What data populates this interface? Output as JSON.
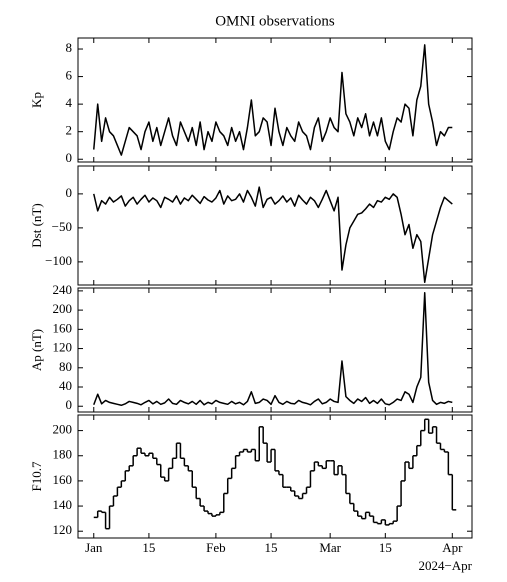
{
  "chart_data": [
    {
      "type": "line",
      "title": "OMNI observations",
      "ylabel": "Kp",
      "color": "#000000",
      "x": [
        "2024-01-01",
        "2024-01-02",
        "2024-01-03",
        "2024-01-04",
        "2024-01-05",
        "2024-01-06",
        "2024-01-07",
        "2024-01-08",
        "2024-01-09",
        "2024-01-10",
        "2024-01-11",
        "2024-01-12",
        "2024-01-13",
        "2024-01-14",
        "2024-01-15",
        "2024-01-16",
        "2024-01-17",
        "2024-01-18",
        "2024-01-19",
        "2024-01-20",
        "2024-01-21",
        "2024-01-22",
        "2024-01-23",
        "2024-01-24",
        "2024-01-25",
        "2024-01-26",
        "2024-01-27",
        "2024-01-28",
        "2024-01-29",
        "2024-01-30",
        "2024-01-31",
        "2024-02-01",
        "2024-02-02",
        "2024-02-03",
        "2024-02-04",
        "2024-02-05",
        "2024-02-06",
        "2024-02-07",
        "2024-02-08",
        "2024-02-09",
        "2024-02-10",
        "2024-02-11",
        "2024-02-12",
        "2024-02-13",
        "2024-02-14",
        "2024-02-15",
        "2024-02-16",
        "2024-02-17",
        "2024-02-18",
        "2024-02-19",
        "2024-02-20",
        "2024-02-21",
        "2024-02-22",
        "2024-02-23",
        "2024-02-24",
        "2024-02-25",
        "2024-02-26",
        "2024-02-27",
        "2024-02-28",
        "2024-02-29",
        "2024-03-01",
        "2024-03-02",
        "2024-03-03",
        "2024-03-04",
        "2024-03-05",
        "2024-03-06",
        "2024-03-07",
        "2024-03-08",
        "2024-03-09",
        "2024-03-10",
        "2024-03-11",
        "2024-03-12",
        "2024-03-13",
        "2024-03-14",
        "2024-03-15",
        "2024-03-16",
        "2024-03-17",
        "2024-03-18",
        "2024-03-19",
        "2024-03-20",
        "2024-03-21",
        "2024-03-22",
        "2024-03-23",
        "2024-03-24",
        "2024-03-25",
        "2024-03-26",
        "2024-03-27",
        "2024-03-28",
        "2024-03-29",
        "2024-03-30",
        "2024-03-31",
        "2024-04-01"
      ],
      "values": [
        0.7,
        4,
        1.3,
        3,
        2,
        1.7,
        1,
        0.3,
        1.3,
        2.3,
        2,
        1.7,
        0.7,
        2,
        2.7,
        1.3,
        2.3,
        1,
        2,
        3,
        1.7,
        1,
        2.7,
        2,
        1.3,
        2.3,
        1,
        2.7,
        0.7,
        2,
        1.3,
        2.7,
        2,
        1.7,
        1,
        2.3,
        1.3,
        2,
        0.7,
        2.3,
        4.3,
        1.7,
        2,
        3,
        2.7,
        1,
        3.7,
        2,
        1,
        2.3,
        1.7,
        1.3,
        2.7,
        2,
        1.7,
        0.7,
        2.3,
        3,
        1.3,
        2,
        3,
        2.3,
        2,
        6.3,
        3.3,
        2.7,
        1.7,
        3,
        2.3,
        3.3,
        1.7,
        2.7,
        1.7,
        3,
        1.3,
        0.7,
        2,
        3,
        2.7,
        4,
        3.7,
        1.7,
        4.3,
        5.3,
        8.3,
        4,
        2.7,
        1,
        2,
        1.7,
        2.3,
        2.3
      ],
      "xlim": [
        "2023-12-28",
        "2024-04-06"
      ],
      "ylim": [
        -0.2,
        8.8
      ],
      "yticks": [
        0,
        2,
        4,
        6,
        8
      ]
    },
    {
      "type": "line",
      "ylabel": "Dst (nT)",
      "color": "#000000",
      "x": [
        "2024-01-01",
        "2024-01-02",
        "2024-01-03",
        "2024-01-04",
        "2024-01-05",
        "2024-01-06",
        "2024-01-07",
        "2024-01-08",
        "2024-01-09",
        "2024-01-10",
        "2024-01-11",
        "2024-01-12",
        "2024-01-13",
        "2024-01-14",
        "2024-01-15",
        "2024-01-16",
        "2024-01-17",
        "2024-01-18",
        "2024-01-19",
        "2024-01-20",
        "2024-01-21",
        "2024-01-22",
        "2024-01-23",
        "2024-01-24",
        "2024-01-25",
        "2024-01-26",
        "2024-01-27",
        "2024-01-28",
        "2024-01-29",
        "2024-01-30",
        "2024-01-31",
        "2024-02-01",
        "2024-02-02",
        "2024-02-03",
        "2024-02-04",
        "2024-02-05",
        "2024-02-06",
        "2024-02-07",
        "2024-02-08",
        "2024-02-09",
        "2024-02-10",
        "2024-02-11",
        "2024-02-12",
        "2024-02-13",
        "2024-02-14",
        "2024-02-15",
        "2024-02-16",
        "2024-02-17",
        "2024-02-18",
        "2024-02-19",
        "2024-02-20",
        "2024-02-21",
        "2024-02-22",
        "2024-02-23",
        "2024-02-24",
        "2024-02-25",
        "2024-02-26",
        "2024-02-27",
        "2024-02-28",
        "2024-02-29",
        "2024-03-01",
        "2024-03-02",
        "2024-03-03",
        "2024-03-04",
        "2024-03-05",
        "2024-03-06",
        "2024-03-07",
        "2024-03-08",
        "2024-03-09",
        "2024-03-10",
        "2024-03-11",
        "2024-03-12",
        "2024-03-13",
        "2024-03-14",
        "2024-03-15",
        "2024-03-16",
        "2024-03-17",
        "2024-03-18",
        "2024-03-19",
        "2024-03-20",
        "2024-03-21",
        "2024-03-22",
        "2024-03-23",
        "2024-03-24",
        "2024-03-25",
        "2024-03-26",
        "2024-03-27",
        "2024-03-28",
        "2024-03-29",
        "2024-03-30",
        "2024-03-31",
        "2024-04-01"
      ],
      "values": [
        0,
        -25,
        -10,
        -15,
        -5,
        -12,
        -8,
        -3,
        -18,
        -10,
        -5,
        -15,
        -8,
        -2,
        -12,
        -6,
        -10,
        -20,
        -5,
        -8,
        -12,
        -3,
        -15,
        -6,
        -10,
        -2,
        -8,
        -14,
        -4,
        -9,
        -12,
        -6,
        5,
        -15,
        -3,
        -10,
        -8,
        0,
        -12,
        5,
        -5,
        -18,
        10,
        -20,
        -8,
        -5,
        -15,
        -10,
        -3,
        -12,
        -6,
        -18,
        -2,
        -9,
        -15,
        -5,
        -10,
        -20,
        -8,
        5,
        -10,
        -25,
        -5,
        -112,
        -75,
        -50,
        -40,
        -30,
        -28,
        -22,
        -15,
        -20,
        -10,
        -12,
        -5,
        -8,
        0,
        -5,
        -30,
        -60,
        -45,
        -80,
        -60,
        -70,
        -130,
        -95,
        -60,
        -40,
        -20,
        -5,
        -10,
        -15
      ],
      "xlim": [
        "2023-12-28",
        "2024-04-06"
      ],
      "ylim": [
        -134,
        41
      ],
      "yticks": [
        {
          "value": -100,
          "label": "−100"
        },
        {
          "value": -50,
          "label": "−50"
        },
        0
      ]
    },
    {
      "type": "line",
      "ylabel": "Ap (nT)",
      "color": "#000000",
      "x": [
        "2024-01-01",
        "2024-01-02",
        "2024-01-03",
        "2024-01-04",
        "2024-01-05",
        "2024-01-06",
        "2024-01-07",
        "2024-01-08",
        "2024-01-09",
        "2024-01-10",
        "2024-01-11",
        "2024-01-12",
        "2024-01-13",
        "2024-01-14",
        "2024-01-15",
        "2024-01-16",
        "2024-01-17",
        "2024-01-18",
        "2024-01-19",
        "2024-01-20",
        "2024-01-21",
        "2024-01-22",
        "2024-01-23",
        "2024-01-24",
        "2024-01-25",
        "2024-01-26",
        "2024-01-27",
        "2024-01-28",
        "2024-01-29",
        "2024-01-30",
        "2024-01-31",
        "2024-02-01",
        "2024-02-02",
        "2024-02-03",
        "2024-02-04",
        "2024-02-05",
        "2024-02-06",
        "2024-02-07",
        "2024-02-08",
        "2024-02-09",
        "2024-02-10",
        "2024-02-11",
        "2024-02-12",
        "2024-02-13",
        "2024-02-14",
        "2024-02-15",
        "2024-02-16",
        "2024-02-17",
        "2024-02-18",
        "2024-02-19",
        "2024-02-20",
        "2024-02-21",
        "2024-02-22",
        "2024-02-23",
        "2024-02-24",
        "2024-02-25",
        "2024-02-26",
        "2024-02-27",
        "2024-02-28",
        "2024-02-29",
        "2024-03-01",
        "2024-03-02",
        "2024-03-03",
        "2024-03-04",
        "2024-03-05",
        "2024-03-06",
        "2024-03-07",
        "2024-03-08",
        "2024-03-09",
        "2024-03-10",
        "2024-03-11",
        "2024-03-12",
        "2024-03-13",
        "2024-03-14",
        "2024-03-15",
        "2024-03-16",
        "2024-03-17",
        "2024-03-18",
        "2024-03-19",
        "2024-03-20",
        "2024-03-21",
        "2024-03-22",
        "2024-03-23",
        "2024-03-24",
        "2024-03-25",
        "2024-03-26",
        "2024-03-27",
        "2024-03-28",
        "2024-03-29",
        "2024-03-30",
        "2024-03-31",
        "2024-04-01"
      ],
      "values": [
        3,
        25,
        5,
        12,
        8,
        6,
        4,
        2,
        5,
        10,
        8,
        6,
        3,
        8,
        12,
        5,
        10,
        4,
        7,
        15,
        6,
        4,
        12,
        8,
        5,
        10,
        4,
        12,
        3,
        8,
        5,
        12,
        8,
        6,
        4,
        10,
        5,
        8,
        3,
        10,
        30,
        6,
        8,
        15,
        12,
        4,
        22,
        8,
        4,
        10,
        6,
        5,
        12,
        8,
        6,
        3,
        10,
        15,
        5,
        8,
        15,
        10,
        8,
        94,
        20,
        12,
        6,
        15,
        10,
        18,
        6,
        12,
        6,
        15,
        5,
        3,
        8,
        15,
        12,
        30,
        25,
        8,
        40,
        60,
        236,
        50,
        12,
        4,
        8,
        6,
        10,
        8
      ],
      "xlim": [
        "2023-12-28",
        "2024-04-06"
      ],
      "ylim": [
        -12,
        246
      ],
      "yticks": [
        0,
        40,
        80,
        120,
        160,
        200,
        240
      ]
    },
    {
      "type": "step",
      "ylabel": "F10.7",
      "color": "#000000",
      "x": [
        "2024-01-01",
        "2024-01-02",
        "2024-01-03",
        "2024-01-04",
        "2024-01-05",
        "2024-01-06",
        "2024-01-07",
        "2024-01-08",
        "2024-01-09",
        "2024-01-10",
        "2024-01-11",
        "2024-01-12",
        "2024-01-13",
        "2024-01-14",
        "2024-01-15",
        "2024-01-16",
        "2024-01-17",
        "2024-01-18",
        "2024-01-19",
        "2024-01-20",
        "2024-01-21",
        "2024-01-22",
        "2024-01-23",
        "2024-01-24",
        "2024-01-25",
        "2024-01-26",
        "2024-01-27",
        "2024-01-28",
        "2024-01-29",
        "2024-01-30",
        "2024-01-31",
        "2024-02-01",
        "2024-02-02",
        "2024-02-03",
        "2024-02-04",
        "2024-02-05",
        "2024-02-06",
        "2024-02-07",
        "2024-02-08",
        "2024-02-09",
        "2024-02-10",
        "2024-02-11",
        "2024-02-12",
        "2024-02-13",
        "2024-02-14",
        "2024-02-15",
        "2024-02-16",
        "2024-02-17",
        "2024-02-18",
        "2024-02-19",
        "2024-02-20",
        "2024-02-21",
        "2024-02-22",
        "2024-02-23",
        "2024-02-24",
        "2024-02-25",
        "2024-02-26",
        "2024-02-27",
        "2024-02-28",
        "2024-02-29",
        "2024-03-01",
        "2024-03-02",
        "2024-03-03",
        "2024-03-04",
        "2024-03-05",
        "2024-03-06",
        "2024-03-07",
        "2024-03-08",
        "2024-03-09",
        "2024-03-10",
        "2024-03-11",
        "2024-03-12",
        "2024-03-13",
        "2024-03-14",
        "2024-03-15",
        "2024-03-16",
        "2024-03-17",
        "2024-03-18",
        "2024-03-19",
        "2024-03-20",
        "2024-03-21",
        "2024-03-22",
        "2024-03-23",
        "2024-03-24",
        "2024-03-25",
        "2024-03-26",
        "2024-03-27",
        "2024-03-28",
        "2024-03-29",
        "2024-03-30",
        "2024-03-31",
        "2024-04-01"
      ],
      "values": [
        131,
        136,
        135,
        122,
        140,
        148,
        155,
        160,
        168,
        172,
        180,
        186,
        182,
        180,
        182,
        178,
        173,
        163,
        160,
        170,
        178,
        190,
        178,
        172,
        168,
        155,
        146,
        140,
        136,
        134,
        132,
        133,
        135,
        150,
        162,
        170,
        180,
        183,
        185,
        183,
        185,
        176,
        203,
        190,
        175,
        185,
        168,
        165,
        155,
        155,
        152,
        148,
        146,
        150,
        155,
        168,
        175,
        172,
        170,
        176,
        176,
        165,
        172,
        165,
        150,
        142,
        136,
        132,
        130,
        135,
        132,
        127,
        126,
        129,
        125,
        126,
        128,
        140,
        160,
        175,
        170,
        180,
        188,
        200,
        209,
        198,
        203,
        190,
        185,
        183,
        165,
        137
      ],
      "xlim": [
        "2023-12-28",
        "2024-04-06"
      ],
      "ylim": [
        114.6,
        212.4
      ],
      "yticks": [
        120,
        140,
        160,
        180,
        200
      ],
      "xticks": [
        {
          "value": "2024-01-01",
          "label": "Jan"
        },
        {
          "value": "2024-01-15",
          "label": "15"
        },
        {
          "value": "2024-02-01",
          "label": "Feb"
        },
        {
          "value": "2024-02-15",
          "label": "15"
        },
        {
          "value": "2024-03-01",
          "label": "Mar"
        },
        {
          "value": "2024-03-15",
          "label": "15"
        },
        {
          "value": "2024-04-01",
          "label": "Apr"
        }
      ],
      "x_offset_label": "2024−Apr"
    }
  ]
}
